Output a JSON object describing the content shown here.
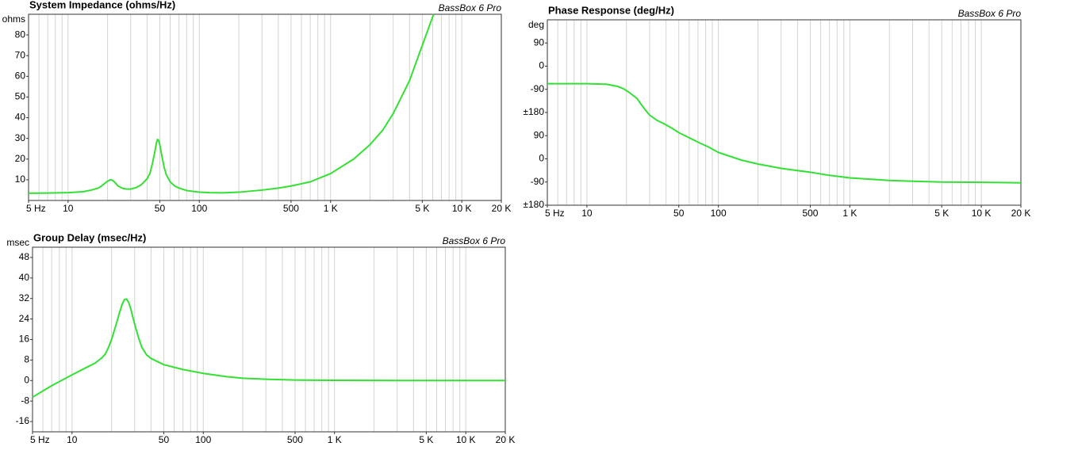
{
  "chart_data": [
    {
      "type": "line",
      "title": "System Impedance (ohms/Hz)",
      "annotation": "BassBox 6 Pro",
      "ylabel": "ohms",
      "xscale": "log",
      "xlim": [
        5,
        20000
      ],
      "ylim": [
        0,
        90
      ],
      "xticks": [
        {
          "value": 5,
          "label": "5 Hz"
        },
        10,
        50,
        100,
        500,
        {
          "value": 1000,
          "label": "1 K"
        },
        {
          "value": 5000,
          "label": "5 K"
        },
        {
          "value": 10000,
          "label": "10 K"
        },
        {
          "value": 20000,
          "label": "20 K"
        }
      ],
      "yticks": [
        10,
        20,
        30,
        40,
        50,
        60,
        70,
        80
      ],
      "xgrid": [
        5,
        6,
        7,
        8,
        9,
        10,
        20,
        30,
        40,
        50,
        60,
        70,
        80,
        90,
        100,
        200,
        300,
        400,
        500,
        600,
        700,
        800,
        900,
        1000,
        2000,
        3000,
        4000,
        5000,
        6000,
        7000,
        8000,
        9000,
        10000,
        20000
      ],
      "series": [
        {
          "color": "#33e033",
          "x": [
            5,
            7,
            10,
            13,
            15,
            17,
            18,
            19,
            20,
            21,
            22,
            23,
            24,
            26,
            28,
            30,
            33,
            36,
            40,
            42,
            44,
            46,
            47,
            48,
            49,
            50,
            52,
            54,
            56,
            60,
            65,
            70,
            80,
            100,
            120,
            150,
            200,
            300,
            400,
            500,
            700,
            1000,
            1500,
            2000,
            2500,
            3000,
            4000,
            5000,
            6100
          ],
          "values": [
            3.5,
            3.6,
            3.8,
            4.2,
            5,
            6,
            7,
            8.2,
            9.3,
            10,
            9.6,
            8.4,
            7,
            5.9,
            5.5,
            5.5,
            6.2,
            7.5,
            10.5,
            13,
            18,
            24,
            27.5,
            29.5,
            29,
            27,
            21,
            16,
            12.5,
            9,
            7,
            6,
            4.8,
            4,
            3.8,
            3.7,
            4,
            5,
            6,
            7,
            9,
            13,
            20,
            27,
            34,
            42,
            58,
            75,
            90
          ]
        }
      ]
    },
    {
      "type": "line",
      "title": "Phase Response (deg/Hz)",
      "annotation": "BassBox 6 Pro",
      "ylabel": "deg",
      "xscale": "log",
      "xlim": [
        5,
        20000
      ],
      "ylim": [
        -180,
        540
      ],
      "xticks": [
        {
          "value": 5,
          "label": "5 Hz"
        },
        10,
        50,
        100,
        500,
        {
          "value": 1000,
          "label": "1 K"
        },
        {
          "value": 5000,
          "label": "5 K"
        },
        {
          "value": 10000,
          "label": "10 K"
        },
        {
          "value": 20000,
          "label": "20 K"
        }
      ],
      "yticks": [
        {
          "value": 450,
          "label": "90"
        },
        {
          "value": 360,
          "label": "0"
        },
        {
          "value": 270,
          "label": "-90"
        },
        {
          "value": 180,
          "label": "±180"
        },
        90,
        0,
        -90,
        {
          "value": -180,
          "label": "±180"
        }
      ],
      "xgrid": [
        5,
        6,
        7,
        8,
        9,
        10,
        20,
        30,
        40,
        50,
        60,
        70,
        80,
        90,
        100,
        200,
        300,
        400,
        500,
        600,
        700,
        800,
        900,
        1000,
        2000,
        3000,
        4000,
        5000,
        6000,
        7000,
        8000,
        9000,
        10000,
        20000
      ],
      "series": [
        {
          "color": "#33e033",
          "x": [
            5,
            10,
            14,
            17,
            19,
            21,
            24,
            26,
            28,
            30,
            34,
            38,
            44,
            50,
            60,
            70,
            85,
            100,
            150,
            200,
            300,
            500,
            700,
            1000,
            2000,
            5000,
            10000,
            20000
          ],
          "values": [
            292,
            292,
            290,
            282,
            272,
            258,
            235,
            210,
            188,
            170,
            150,
            138,
            120,
            102,
            82,
            65,
            45,
            25,
            -5,
            -20,
            -37,
            -52,
            -64,
            -74,
            -84,
            -90,
            -91,
            -93
          ]
        }
      ]
    },
    {
      "type": "line",
      "title": "Group Delay (msec/Hz)",
      "annotation": "BassBox 6 Pro",
      "ylabel": "msec",
      "xscale": "log",
      "xlim": [
        5,
        20000
      ],
      "ylim": [
        -20,
        52
      ],
      "xticks": [
        {
          "value": 5,
          "label": "5 Hz"
        },
        10,
        50,
        100,
        500,
        {
          "value": 1000,
          "label": "1 K"
        },
        {
          "value": 5000,
          "label": "5 K"
        },
        {
          "value": 10000,
          "label": "10 K"
        },
        {
          "value": 20000,
          "label": "20 K"
        }
      ],
      "yticks": [
        48,
        40,
        32,
        24,
        16,
        8,
        0,
        -8,
        -16
      ],
      "xgrid": [
        5,
        6,
        7,
        8,
        9,
        10,
        20,
        30,
        40,
        50,
        60,
        70,
        80,
        90,
        100,
        200,
        300,
        400,
        500,
        600,
        700,
        800,
        900,
        1000,
        2000,
        3000,
        4000,
        5000,
        6000,
        7000,
        8000,
        9000,
        10000,
        20000
      ],
      "series": [
        {
          "color": "#33e033",
          "x": [
            5,
            7,
            10,
            13,
            15,
            17,
            18,
            19,
            20,
            21,
            22,
            23,
            24,
            25,
            26,
            27,
            28,
            30,
            32,
            34,
            37,
            40,
            50,
            70,
            100,
            150,
            200,
            300,
            500,
            1000,
            5000,
            20000
          ],
          "values": [
            -6.5,
            -2,
            2.2,
            5.2,
            6.8,
            9,
            10.5,
            13,
            16,
            19.5,
            23,
            26.5,
            29.5,
            31.5,
            31.8,
            30.5,
            28,
            22,
            17,
            13,
            10,
            8.6,
            6.2,
            4.3,
            2.8,
            1.5,
            0.9,
            0.5,
            0.2,
            0.1,
            0,
            0
          ]
        }
      ]
    }
  ]
}
